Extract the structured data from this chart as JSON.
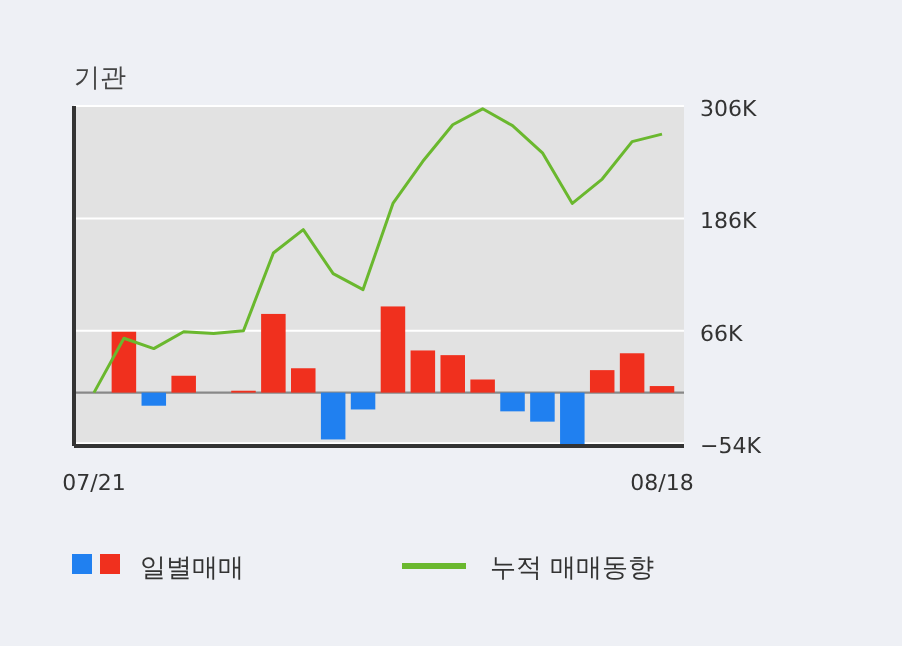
{
  "chart_data": {
    "type": "bar",
    "title": "기관",
    "categories": [
      "07/21",
      null,
      null,
      null,
      null,
      null,
      null,
      null,
      null,
      null,
      null,
      null,
      null,
      null,
      null,
      null,
      null,
      null,
      null,
      "08/18"
    ],
    "series": [
      {
        "name": "일별매매",
        "colors": [
          "#f0301e",
          "#f0301e",
          "#2080f0",
          "#f0301e",
          "#f0301e",
          "#f0301e",
          "#f0301e",
          "#f0301e",
          "#2080f0",
          "#2080f0",
          "#f0301e",
          "#f0301e",
          "#f0301e",
          "#f0301e",
          "#2080f0",
          "#2080f0",
          "#2080f0",
          "#f0301e",
          "#f0301e",
          "#f0301e"
        ],
        "values": [
          null,
          65,
          -14,
          18,
          null,
          2,
          84,
          26,
          -50,
          -18,
          92,
          45,
          40,
          14,
          -20,
          -31,
          -55,
          24,
          42,
          7
        ]
      },
      {
        "name": "누적 매매동향",
        "type": "line",
        "color": "#6ab82e",
        "values": [
          0,
          58,
          47,
          65,
          63,
          66,
          149,
          174,
          127,
          110,
          202,
          247,
          286,
          303,
          285,
          256,
          202,
          228,
          268,
          276
        ]
      }
    ],
    "ylim": [
      -57,
      306
    ],
    "yticks": [
      {
        "value": 306,
        "label": "306K"
      },
      {
        "value": 186,
        "label": "186K"
      },
      {
        "value": 66,
        "label": "66K"
      },
      {
        "value": -54,
        "label": "−54K"
      }
    ],
    "grid": "y",
    "legend": "bottom",
    "marker": "none",
    "line_style": "solid"
  }
}
